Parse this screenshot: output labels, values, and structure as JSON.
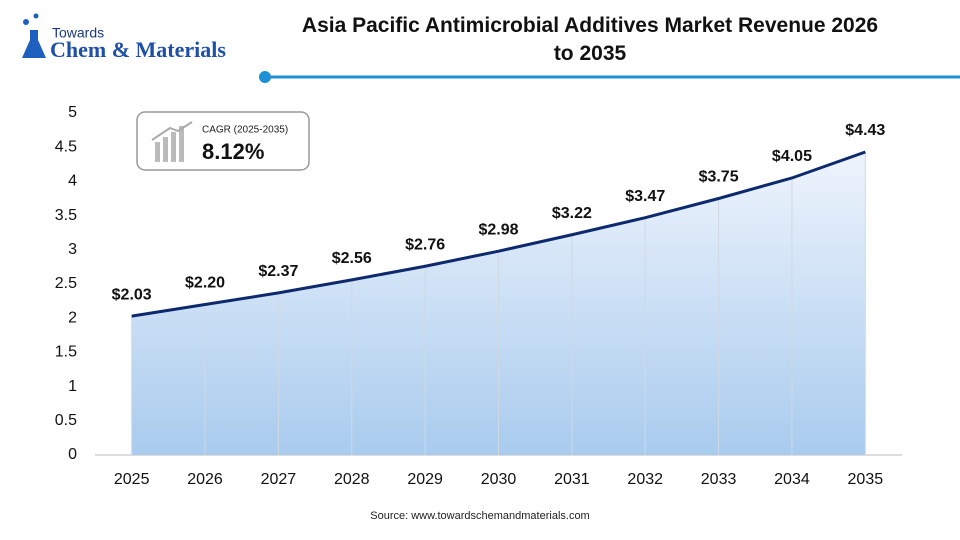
{
  "logo": {
    "top": "Towards",
    "bottom": "Chem & Materials"
  },
  "chart_data": {
    "type": "line",
    "title": "Asia Pacific Antimicrobial Additives Market Revenue 2026 to 2035",
    "categories": [
      "2025",
      "2026",
      "2027",
      "2028",
      "2029",
      "2030",
      "2031",
      "2032",
      "2033",
      "2034",
      "2035"
    ],
    "series": [
      {
        "name": "Revenue",
        "color": "#0d2a6e",
        "values": [
          2.03,
          2.2,
          2.37,
          2.56,
          2.76,
          2.98,
          3.22,
          3.47,
          3.75,
          4.05,
          4.43
        ],
        "value_labels": [
          "$2.03",
          "$2.20",
          "$2.37",
          "$2.56",
          "$2.76",
          "$2.98",
          "$3.22",
          "$3.47",
          "$3.75",
          "$4.05",
          "$4.43"
        ]
      }
    ],
    "ylim": [
      0,
      5
    ],
    "yticks": [
      0,
      0.5,
      1,
      1.5,
      2,
      2.5,
      3,
      3.5,
      4,
      4.5,
      5
    ],
    "annotation": {
      "label": "CAGR (2025-2035)",
      "value": "8.12%"
    },
    "source": "Source: www.towardschemandmaterials.com"
  }
}
